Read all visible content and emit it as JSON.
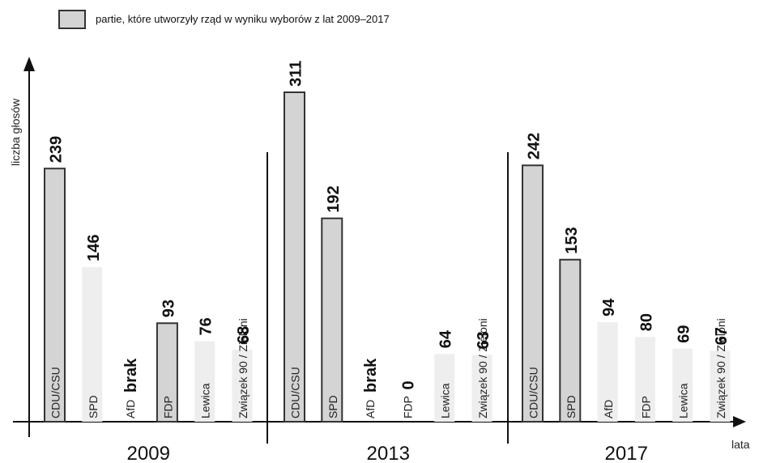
{
  "legend": {
    "label": "partie, które utworzyły rząd w wyniku wyborów z lat  2009–2017",
    "swatch_color": "#d4d4d4"
  },
  "colors": {
    "government": "#d4d4d4",
    "government_stroke": "#333333",
    "other": "#eeeeee"
  },
  "chart_data": {
    "type": "bar",
    "ylabel": "liczba głosów",
    "xlabel": "lata",
    "groups": [
      {
        "year": "2009",
        "bars": [
          {
            "party": "CDU/CSU",
            "value": 239,
            "label": "239",
            "government": true
          },
          {
            "party": "SPD",
            "value": 146,
            "label": "146",
            "government": false
          },
          {
            "party": "AfD",
            "value": null,
            "label": "brak",
            "government": false
          },
          {
            "party": "FDP",
            "value": 93,
            "label": "93",
            "government": true
          },
          {
            "party": "Lewica",
            "value": 76,
            "label": "76",
            "government": false
          },
          {
            "party": "Związek 90 / Zieloni",
            "value": 68,
            "label": "68",
            "government": false
          }
        ]
      },
      {
        "year": "2013",
        "bars": [
          {
            "party": "CDU/CSU",
            "value": 311,
            "label": "311",
            "government": true
          },
          {
            "party": "SPD",
            "value": 192,
            "label": "192",
            "government": true
          },
          {
            "party": "AfD",
            "value": null,
            "label": "brak",
            "government": false
          },
          {
            "party": "FDP",
            "value": 0,
            "label": "0",
            "government": false
          },
          {
            "party": "Lewica",
            "value": 64,
            "label": "64",
            "government": false
          },
          {
            "party": "Związek 90 / Zieloni",
            "value": 63,
            "label": "63",
            "government": false
          }
        ]
      },
      {
        "year": "2017",
        "bars": [
          {
            "party": "CDU/CSU",
            "value": 242,
            "label": "242",
            "government": true
          },
          {
            "party": "SPD",
            "value": 153,
            "label": "153",
            "government": true
          },
          {
            "party": "AfD",
            "value": 94,
            "label": "94",
            "government": false
          },
          {
            "party": "FDP",
            "value": 80,
            "label": "80",
            "government": false
          },
          {
            "party": "Lewica",
            "value": 69,
            "label": "69",
            "government": false
          },
          {
            "party": "Związek 90 / Zieloni",
            "value": 67,
            "label": "67",
            "government": false
          }
        ]
      }
    ],
    "ylim": [
      0,
      330
    ],
    "grid": false,
    "legend_position": "top-left"
  }
}
